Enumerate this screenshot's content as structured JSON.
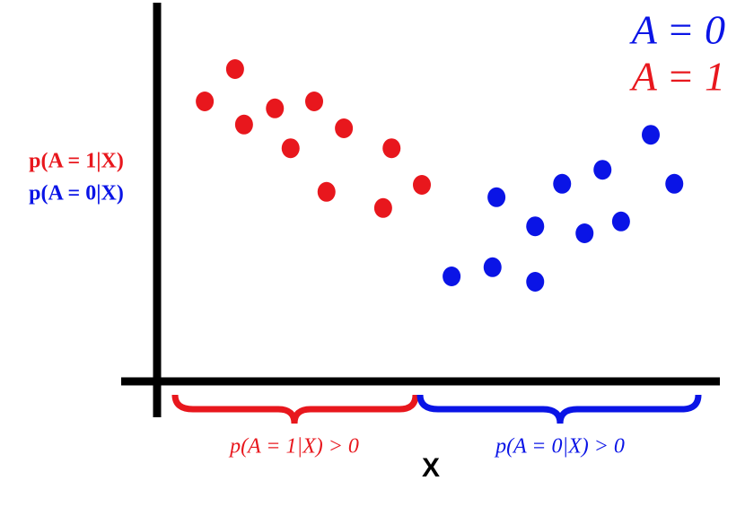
{
  "chart_data": {
    "type": "scatter",
    "xlabel": "X",
    "ylabels": [
      "p(A = 1|X)",
      "p(A = 0|X)"
    ],
    "annotations": [
      "p(A = 1|X) > 0",
      "p(A = 0|X) > 0"
    ],
    "xlim": [
      0,
      100
    ],
    "ylim": [
      0,
      70
    ],
    "legend": "upper right",
    "series": [
      {
        "name": "A = 0",
        "color": "#0a14e6",
        "x": [
          52.5,
          59.8,
          60.5,
          67.4,
          67.4,
          72.2,
          76.2,
          79.4,
          82.7,
          88.0,
          92.2
        ],
        "y": [
          19.5,
          21.2,
          34.2,
          28.8,
          18.5,
          36.7,
          27.5,
          39.3,
          29.7,
          45.8,
          36.7
        ]
      },
      {
        "name": "A = 1",
        "color": "#e8171d",
        "x": [
          8.5,
          13.9,
          15.5,
          21.0,
          23.8,
          28.0,
          30.2,
          33.3,
          40.3,
          41.8,
          47.2
        ],
        "y": [
          52.0,
          58.0,
          47.7,
          50.7,
          43.3,
          52.0,
          35.2,
          47.0,
          32.2,
          43.3,
          36.5
        ]
      }
    ]
  }
}
